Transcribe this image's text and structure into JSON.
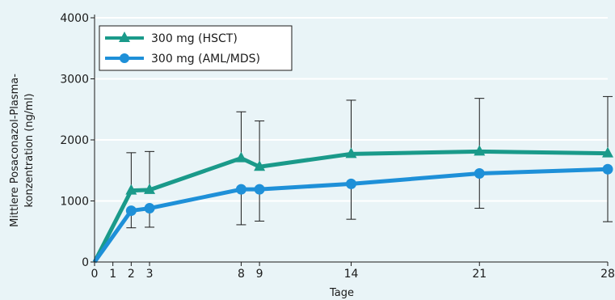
{
  "chart_data": {
    "type": "line",
    "xlabel": "Tage",
    "ylabel_lines": [
      "Mittlere Posaconazol-Plasma-",
      "konzentration (ng/ml)"
    ],
    "xlim": [
      0,
      28
    ],
    "ylim": [
      0,
      4000
    ],
    "x_ticks": [
      0,
      1,
      2,
      3,
      8,
      9,
      14,
      21,
      28
    ],
    "y_ticks": [
      0,
      1000,
      2000,
      3000,
      4000
    ],
    "grid": "horizontal",
    "legend_position": "top-left",
    "series": [
      {
        "name": "300 mg (HSCT)",
        "color": "#1a9a8a",
        "marker": "triangle",
        "x": [
          0,
          2,
          3,
          8,
          9,
          14,
          21,
          28
        ],
        "y": [
          0,
          1170,
          1180,
          1700,
          1560,
          1770,
          1810,
          1780
        ],
        "error_upper": [
          null,
          1790,
          1810,
          2460,
          2310,
          2650,
          2680,
          2710
        ],
        "error_lower": [
          null,
          null,
          null,
          null,
          null,
          null,
          null,
          null
        ]
      },
      {
        "name": "300 mg (AML/MDS)",
        "color": "#1e90d8",
        "marker": "circle",
        "x": [
          0,
          2,
          3,
          8,
          9,
          14,
          21,
          28
        ],
        "y": [
          0,
          840,
          880,
          1190,
          1190,
          1280,
          1450,
          1520
        ],
        "error_upper": [
          null,
          null,
          null,
          null,
          null,
          null,
          null,
          null
        ],
        "error_lower": [
          null,
          560,
          570,
          610,
          670,
          700,
          880,
          660
        ]
      }
    ]
  }
}
